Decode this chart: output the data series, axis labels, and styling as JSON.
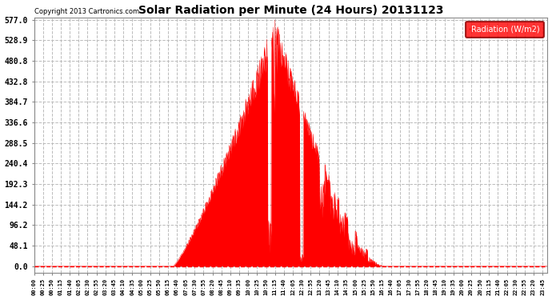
{
  "title": "Solar Radiation per Minute (24 Hours) 20131123",
  "copyright_text": "Copyright 2013 Cartronics.com",
  "legend_label": "Radiation (W/m2)",
  "background_color": "#ffffff",
  "plot_background_color": "#ffffff",
  "fill_color": "#ff0000",
  "line_color": "#ff0000",
  "grid_color": "#bbbbbb",
  "grid_linestyle": "--",
  "ymin": 0.0,
  "ymax": 577.0,
  "yticks": [
    0.0,
    48.1,
    96.2,
    144.2,
    192.3,
    240.4,
    288.5,
    336.6,
    384.7,
    432.8,
    480.8,
    528.9,
    577.0
  ],
  "total_minutes": 1440,
  "peak_minute": 675,
  "peak_value": 577.0,
  "sunrise_minute": 390,
  "sunset_minute": 985,
  "xtick_interval": 25
}
